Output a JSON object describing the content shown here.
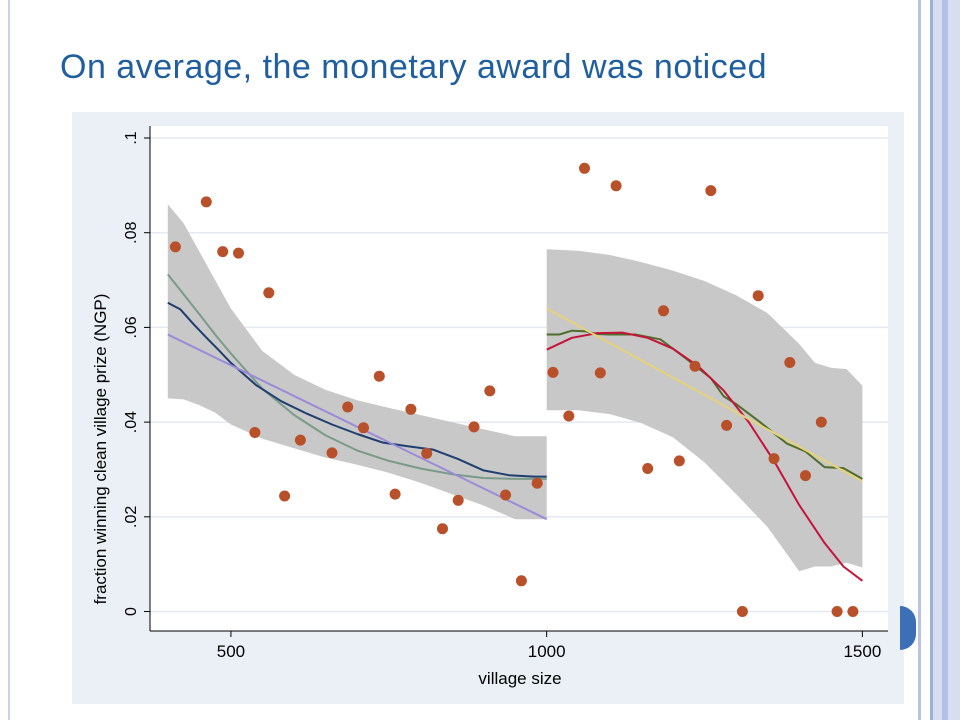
{
  "slide": {
    "title": "On average, the monetary award was noticed"
  },
  "colors": {
    "title": "#1f5fa0",
    "chart_bg": "#eaf0f6",
    "plot_bg": "#ffffff",
    "grid": "#e3eaf1",
    "ci_band": "#c8c8c8",
    "points": "#b8502a",
    "left_lowess": "#7a9a8a",
    "left_local": "#1f3e70",
    "left_linear": "#9a8ad8",
    "right_lowess": "#4e6e2c",
    "right_quadratic": "#c4143a",
    "right_linear": "#e6d27a"
  },
  "chart_data": {
    "type": "scatter",
    "title": "",
    "xlabel": "village size",
    "ylabel": "fraction winning clean village prize (NGP)",
    "xlim": [
      375,
      1520
    ],
    "ylim": [
      -0.002,
      0.1
    ],
    "xticks": [
      500,
      1000,
      1500
    ],
    "xtick_labels": [
      "500",
      "1000",
      "1500"
    ],
    "yticks": [
      0,
      0.02,
      0.04,
      0.06,
      0.08,
      0.1
    ],
    "ytick_labels": [
      "0",
      ".02",
      ".04",
      ".06",
      ".08",
      ".1"
    ],
    "grid": true,
    "cutoff": 1000,
    "points": [
      {
        "x": 412,
        "y": 0.077
      },
      {
        "x": 461,
        "y": 0.0865
      },
      {
        "x": 487,
        "y": 0.076
      },
      {
        "x": 512,
        "y": 0.0757
      },
      {
        "x": 538,
        "y": 0.0378
      },
      {
        "x": 560,
        "y": 0.0673
      },
      {
        "x": 585,
        "y": 0.0244
      },
      {
        "x": 610,
        "y": 0.0362
      },
      {
        "x": 660,
        "y": 0.0335
      },
      {
        "x": 685,
        "y": 0.0432
      },
      {
        "x": 710,
        "y": 0.0388
      },
      {
        "x": 735,
        "y": 0.0497
      },
      {
        "x": 760,
        "y": 0.0248
      },
      {
        "x": 785,
        "y": 0.0427
      },
      {
        "x": 810,
        "y": 0.0334
      },
      {
        "x": 835,
        "y": 0.0175
      },
      {
        "x": 860,
        "y": 0.0235
      },
      {
        "x": 885,
        "y": 0.039
      },
      {
        "x": 910,
        "y": 0.0466
      },
      {
        "x": 935,
        "y": 0.0246
      },
      {
        "x": 960,
        "y": 0.0065
      },
      {
        "x": 985,
        "y": 0.0271
      },
      {
        "x": 1010,
        "y": 0.0505
      },
      {
        "x": 1035,
        "y": 0.0413
      },
      {
        "x": 1060,
        "y": 0.0936
      },
      {
        "x": 1085,
        "y": 0.0504
      },
      {
        "x": 1110,
        "y": 0.0899
      },
      {
        "x": 1160,
        "y": 0.0302
      },
      {
        "x": 1185,
        "y": 0.0635
      },
      {
        "x": 1210,
        "y": 0.0318
      },
      {
        "x": 1235,
        "y": 0.0518
      },
      {
        "x": 1260,
        "y": 0.0889
      },
      {
        "x": 1285,
        "y": 0.0393
      },
      {
        "x": 1310,
        "y": 0.0
      },
      {
        "x": 1335,
        "y": 0.0667
      },
      {
        "x": 1360,
        "y": 0.0323
      },
      {
        "x": 1385,
        "y": 0.0526
      },
      {
        "x": 1410,
        "y": 0.0287
      },
      {
        "x": 1435,
        "y": 0.04
      },
      {
        "x": 1460,
        "y": 0.0
      },
      {
        "x": 1485,
        "y": 0.0
      }
    ],
    "bands": [
      {
        "name": "left-ci-band",
        "x": [
          400,
          425,
          450,
          475,
          500,
          550,
          600,
          650,
          700,
          750,
          800,
          850,
          900,
          950,
          1000
        ],
        "upper": [
          0.086,
          0.082,
          0.076,
          0.07,
          0.064,
          0.055,
          0.05,
          0.0468,
          0.0446,
          0.043,
          0.0415,
          0.04,
          0.0385,
          0.037,
          0.037
        ],
        "lower": [
          0.045,
          0.0448,
          0.0436,
          0.042,
          0.0395,
          0.0365,
          0.0345,
          0.0325,
          0.031,
          0.0293,
          0.0272,
          0.0248,
          0.0224,
          0.0195,
          0.0195
        ]
      },
      {
        "name": "right-ci-band",
        "x": [
          1000,
          1050,
          1100,
          1150,
          1200,
          1250,
          1300,
          1350,
          1400,
          1425,
          1450,
          1475,
          1500
        ],
        "upper": [
          0.0765,
          0.0762,
          0.0753,
          0.0738,
          0.072,
          0.0698,
          0.0668,
          0.063,
          0.0565,
          0.0525,
          0.0515,
          0.0512,
          0.0477
        ],
        "lower": [
          0.0425,
          0.0425,
          0.0417,
          0.0398,
          0.0368,
          0.0315,
          0.0248,
          0.0178,
          0.0085,
          0.0095,
          0.0095,
          0.0103,
          0.0093
        ]
      }
    ],
    "series": [
      {
        "key": "left_lowess",
        "x": [
          400,
          425,
          450,
          475,
          500,
          550,
          600,
          650,
          700,
          750,
          800,
          850,
          900,
          950,
          1000
        ],
        "y": [
          0.0712,
          0.067,
          0.0628,
          0.0585,
          0.0545,
          0.047,
          0.0415,
          0.0372,
          0.034,
          0.0318,
          0.0302,
          0.029,
          0.0282,
          0.028,
          0.028
        ]
      },
      {
        "key": "left_local",
        "x": [
          400,
          420,
          440,
          460,
          480,
          500,
          540,
          580,
          620,
          660,
          700,
          740,
          780,
          820,
          860,
          900,
          940,
          980,
          1000
        ],
        "y": [
          0.0652,
          0.0638,
          0.0608,
          0.058,
          0.0553,
          0.0525,
          0.0478,
          0.0444,
          0.0418,
          0.0395,
          0.0375,
          0.0357,
          0.0349,
          0.0342,
          0.0322,
          0.0298,
          0.0288,
          0.0285,
          0.0285
        ]
      },
      {
        "key": "left_linear",
        "x": [
          400,
          1000
        ],
        "y": [
          0.0585,
          0.0195
        ]
      },
      {
        "key": "right_lowess",
        "x": [
          1000,
          1020,
          1040,
          1060,
          1080,
          1100,
          1140,
          1180,
          1220,
          1260,
          1280,
          1300,
          1340,
          1380,
          1410,
          1440,
          1470,
          1500
        ],
        "y": [
          0.0585,
          0.0585,
          0.0593,
          0.0592,
          0.0586,
          0.0585,
          0.0585,
          0.0575,
          0.0535,
          0.0493,
          0.0455,
          0.0438,
          0.0398,
          0.0355,
          0.0338,
          0.0305,
          0.0303,
          0.028
        ]
      },
      {
        "key": "right_quadratic",
        "x": [
          1000,
          1040,
          1080,
          1120,
          1160,
          1200,
          1240,
          1280,
          1320,
          1360,
          1400,
          1440,
          1470,
          1500
        ],
        "y": [
          0.0553,
          0.0578,
          0.0588,
          0.0589,
          0.0578,
          0.0555,
          0.0518,
          0.0467,
          0.04,
          0.0318,
          0.0225,
          0.0145,
          0.0095,
          0.0065
        ]
      },
      {
        "key": "right_linear",
        "x": [
          1000,
          1500
        ],
        "y": [
          0.064,
          0.0275
        ]
      }
    ]
  }
}
